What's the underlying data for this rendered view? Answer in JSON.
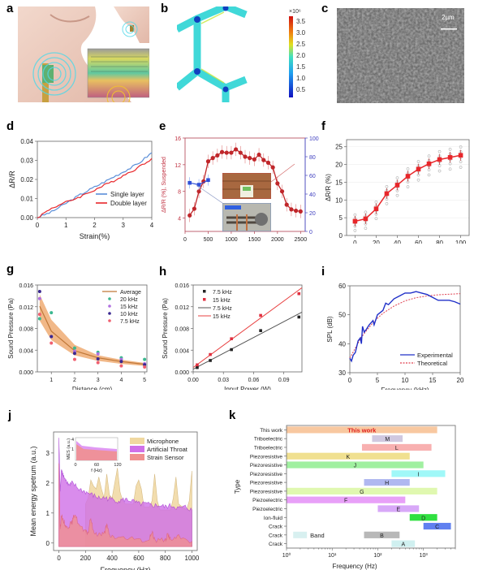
{
  "panels": {
    "a": {
      "letter": "a"
    },
    "b": {
      "letter": "b",
      "colorbar": {
        "exponent_label": "×10⁶",
        "ticks": [
          "3.5",
          "3.0",
          "2.5",
          "2.0",
          "1.5",
          "1.0",
          "0.5"
        ]
      }
    },
    "c": {
      "letter": "c",
      "scale_bar": "2μm"
    },
    "d": {
      "letter": "d"
    },
    "e": {
      "letter": "e"
    },
    "f": {
      "letter": "f"
    },
    "g": {
      "letter": "g"
    },
    "h": {
      "letter": "h"
    },
    "i": {
      "letter": "i"
    },
    "j": {
      "letter": "j"
    },
    "k": {
      "letter": "k"
    }
  },
  "colors": {
    "red": "#e8262a",
    "blue": "#3b5fd6",
    "orange": "#e8a060",
    "purple": "#c060e8",
    "yellow": "#f0d090",
    "pink": "#f08080"
  },
  "chart_data": [
    {
      "id": "d",
      "type": "line",
      "xlabel": "Strain(%)",
      "ylabel": "ΔR/R",
      "xlim": [
        0,
        4
      ],
      "ylim": [
        0,
        0.04
      ],
      "xticks": [
        "0",
        "1",
        "2",
        "3",
        "4"
      ],
      "yticks": [
        "0.00",
        "0.01",
        "0.02",
        "0.03",
        "0.04"
      ],
      "legend": "bottom-right",
      "series": [
        {
          "name": "Single layer",
          "color": "#5a8ed8",
          "x": [
            0,
            0.5,
            1,
            1.5,
            2,
            2.5,
            3,
            3.5,
            4
          ],
          "y": [
            0,
            0.003,
            0.0075,
            0.012,
            0.016,
            0.02,
            0.024,
            0.028,
            0.034
          ]
        },
        {
          "name": "Double layer",
          "color": "#e8262a",
          "x": [
            0,
            0.5,
            1,
            1.5,
            2,
            2.5,
            3,
            3.5,
            4
          ],
          "y": [
            0,
            0.005,
            0.008,
            0.011,
            0.0145,
            0.018,
            0.022,
            0.026,
            0.031
          ]
        }
      ]
    },
    {
      "id": "e",
      "type": "line",
      "xlabel": "Frequency (Hz)",
      "ylabel": "ΔR/R (%), Suspended",
      "xlim": [
        0,
        2600
      ],
      "ylim": [
        2,
        16
      ],
      "y2lim": [
        0,
        100
      ],
      "xticks": [
        "0",
        "500",
        "1000",
        "1500",
        "2000",
        "2500"
      ],
      "yticks": [
        "4",
        "8",
        "12",
        "16"
      ],
      "y2ticks": [
        "0",
        "20",
        "40",
        "60",
        "80",
        "100"
      ],
      "series": [
        {
          "name": "Suspended",
          "color": "#c0262a",
          "x": [
            100,
            200,
            300,
            400,
            500,
            600,
            700,
            800,
            900,
            1000,
            1100,
            1200,
            1300,
            1400,
            1500,
            1600,
            1700,
            1800,
            1900,
            2000,
            2100,
            2200,
            2300,
            2400,
            2500
          ],
          "y": [
            4.4,
            5.4,
            8,
            9.5,
            12.5,
            13,
            13.4,
            13.9,
            13.8,
            13.8,
            14.3,
            13.8,
            13.2,
            13,
            12.8,
            13.5,
            12.7,
            12.3,
            11.6,
            9.2,
            8,
            6,
            5.3,
            5.1,
            5
          ]
        },
        {
          "name": "Substrated",
          "color": "#3050d8",
          "axis": "y2",
          "x": [
            100,
            300,
            500
          ],
          "y": [
            52,
            50,
            55
          ]
        }
      ]
    },
    {
      "id": "f",
      "type": "line",
      "xlabel": "Intensity (%)",
      "ylabel": "ΔR/R (%)",
      "xlim": [
        -8,
        108
      ],
      "ylim": [
        0,
        27
      ],
      "xticks": [
        "0",
        "20",
        "40",
        "60",
        "80",
        "100"
      ],
      "yticks": [
        "0",
        "5",
        "10",
        "15",
        "20",
        "25"
      ],
      "series": [
        {
          "name": "mean",
          "color": "#e8262a",
          "x": [
            0,
            10,
            20,
            30,
            40,
            50,
            60,
            70,
            80,
            90,
            100
          ],
          "y": [
            4,
            4.7,
            7.5,
            11.8,
            14.2,
            16.7,
            18.7,
            20.2,
            21.4,
            22,
            22.6
          ]
        }
      ]
    },
    {
      "id": "g",
      "type": "scatter",
      "xlabel": "Distance (cm)",
      "ylabel": "Sound Pressure (Pa)",
      "xlim": [
        0.4,
        5.1
      ],
      "ylim": [
        0,
        0.016
      ],
      "xticks": [
        "1",
        "2",
        "3",
        "4",
        "5"
      ],
      "yticks": [
        "0.000",
        "0.004",
        "0.008",
        "0.012",
        "0.016"
      ],
      "legend": "top-right",
      "series": [
        {
          "name": "Average",
          "color": "#c07838",
          "x": [
            0.5,
            1,
            2,
            3,
            4,
            5
          ],
          "y": [
            0.0121,
            0.0075,
            0.0039,
            0.0026,
            0.0019,
            0.0014
          ]
        },
        {
          "name": "20 kHz",
          "color": "#3cb890",
          "x": [
            0.5,
            1,
            2,
            3,
            4,
            5
          ],
          "y": [
            0.0098,
            0.0109,
            0.0044,
            0.0036,
            0.0026,
            0.0023
          ]
        },
        {
          "name": "15 kHz",
          "color": "#b070e0",
          "x": [
            0.5,
            1,
            2,
            3,
            4,
            5
          ],
          "y": [
            0.0135,
            0.0065,
            0.0038,
            0.0033,
            0.0023,
            0.0015
          ]
        },
        {
          "name": "10 kHz",
          "color": "#3a2890",
          "x": [
            0.5,
            1,
            2,
            3,
            4,
            5
          ],
          "y": [
            0.0148,
            0.0065,
            0.0034,
            0.0024,
            0.0019,
            0.0013
          ]
        },
        {
          "name": "7.5 kHz",
          "color": "#f06070",
          "x": [
            0.5,
            1,
            2,
            3,
            4,
            5
          ],
          "y": [
            0.0106,
            0.0053,
            0.0023,
            0.0017,
            0.0011,
            0.0009
          ]
        }
      ]
    },
    {
      "id": "h",
      "type": "scatter",
      "xlabel": "Input Power (W)",
      "ylabel": "Sound Pressure (Pa)",
      "xlim": [
        0,
        0.108
      ],
      "ylim": [
        0,
        0.016
      ],
      "xticks": [
        "0.00",
        "0.03",
        "0.06",
        "0.09"
      ],
      "yticks": [
        "0.000",
        "0.004",
        "0.008",
        "0.012",
        "0.016"
      ],
      "legend": "top-left",
      "series": [
        {
          "name": "7.5 kHz",
          "kind": "points",
          "color": "#222222",
          "x": [
            0.004,
            0.017,
            0.038,
            0.067,
            0.105
          ],
          "y": [
            0.0008,
            0.0021,
            0.0041,
            0.0076,
            0.0101
          ]
        },
        {
          "name": "15 kHz",
          "kind": "points",
          "color": "#e03040",
          "x": [
            0.004,
            0.017,
            0.038,
            0.067,
            0.105
          ],
          "y": [
            0.0013,
            0.0032,
            0.0061,
            0.0104,
            0.0144
          ]
        },
        {
          "name": "7.5 kHz",
          "kind": "fit",
          "color": "#555555",
          "x": [
            0,
            0.108
          ],
          "y": [
            0.0005,
            0.011
          ]
        },
        {
          "name": "15 kHz",
          "kind": "fit",
          "color": "#e84040",
          "x": [
            0,
            0.108
          ],
          "y": [
            0.0008,
            0.0155
          ]
        }
      ]
    },
    {
      "id": "i",
      "type": "line",
      "xlabel": "Frequency (kHz)",
      "ylabel": "SPL (dB)",
      "xlim": [
        0,
        20
      ],
      "ylim": [
        30,
        60
      ],
      "xticks": [
        "0",
        "5",
        "10",
        "15",
        "20"
      ],
      "yticks": [
        "30",
        "40",
        "50",
        "60"
      ],
      "legend": "bottom-right",
      "series": [
        {
          "name": "Experimental",
          "color": "#2030c8",
          "x": [
            0,
            0.3,
            0.6,
            1,
            1.5,
            1.9,
            2.1,
            2.3,
            2.6,
            3,
            3.5,
            4.2,
            4.4,
            5,
            6,
            6.5,
            7,
            8,
            9,
            10,
            11,
            12,
            13,
            14,
            15,
            16,
            17,
            18,
            19,
            20
          ],
          "y": [
            35,
            34,
            36,
            37,
            41,
            42,
            40,
            46,
            44,
            45,
            46.5,
            48,
            46.5,
            50,
            51.5,
            54,
            53.5,
            55.5,
            56.5,
            57.5,
            57.5,
            58,
            57.5,
            57,
            56,
            55,
            55,
            55,
            54.5,
            53.7
          ]
        },
        {
          "name": "Theoretical",
          "color": "#e04050",
          "dash": true,
          "x": [
            0,
            1,
            2,
            3,
            4,
            5,
            6,
            8,
            10,
            12,
            14,
            16,
            18,
            20
          ],
          "y": [
            35,
            38.5,
            42,
            44.5,
            46.8,
            48.8,
            50.5,
            53,
            54.8,
            55.9,
            56.5,
            56.9,
            57.1,
            57.3
          ]
        }
      ]
    },
    {
      "id": "j",
      "type": "area",
      "xlabel": "Frequency (Hz)",
      "ylabel": "Mean energy spetrum (a.u.)",
      "xlim": [
        -40,
        1040
      ],
      "ylim": [
        -0.25,
        3.7
      ],
      "xticks": [
        "0",
        "200",
        "400",
        "600",
        "800",
        "1000"
      ],
      "yticks": [
        "0",
        "1",
        "2",
        "3"
      ],
      "legend": "top-right",
      "series": [
        {
          "name": "Microphone",
          "color": "#f0d8a0",
          "x": [
            200,
            220,
            240,
            260,
            280,
            300,
            320,
            340,
            360,
            380,
            400,
            420,
            440,
            460,
            480,
            500,
            560,
            580,
            600,
            620,
            640,
            680,
            700,
            720,
            740,
            760,
            840,
            860,
            880,
            900,
            960,
            980,
            1000
          ],
          "y": [
            1.3,
            1.5,
            2.1,
            1.9,
            1.8,
            2.2,
            1.8,
            1.5,
            2.3,
            1.6,
            1.5,
            2,
            2.5,
            1.7,
            1.4,
            1.3,
            1.3,
            1.9,
            2.1,
            1.8,
            1.2,
            1.2,
            1.4,
            2.3,
            1.4,
            1.1,
            1.1,
            1.5,
            2.2,
            1.3,
            1.1,
            1.4,
            2.4
          ]
        },
        {
          "name": "Artificial Throat",
          "color": "#d070e8",
          "x": [
            0,
            10,
            20,
            30,
            50,
            80,
            100,
            150,
            200,
            250,
            300,
            350,
            400,
            450,
            500,
            550,
            600,
            650,
            700,
            750,
            800,
            850,
            900,
            950,
            1000
          ],
          "y": [
            3.5,
            1.7,
            2.5,
            2.3,
            2.1,
            1.9,
            2,
            1.8,
            1.7,
            1.6,
            1.5,
            1.5,
            1.45,
            1.4,
            1.45,
            1.4,
            1.3,
            1.3,
            1.25,
            1.25,
            1.2,
            1.25,
            1.15,
            1.2,
            1.1
          ]
        },
        {
          "name": "Strain Sensor",
          "color": "#f09090",
          "x": [
            0,
            10,
            20,
            40,
            60,
            80,
            100,
            120,
            150,
            200,
            220,
            240,
            260,
            300,
            340,
            360,
            380,
            420,
            500,
            600,
            680,
            700,
            720,
            800,
            820,
            840,
            900,
            1000
          ],
          "y": [
            2.6,
            0.5,
            0.9,
            0.7,
            0.5,
            0.6,
            0.7,
            1,
            0.6,
            0.35,
            0.35,
            0.85,
            0.35,
            0.3,
            0.3,
            0.6,
            0.25,
            0.2,
            0.15,
            0.1,
            0.1,
            0.4,
            0.1,
            0.1,
            0.3,
            0.1,
            0.2,
            0.05
          ]
        }
      ],
      "inset": {
        "xlabel": "f (Hz)",
        "ylabel": "MES (a.u.)",
        "xticks": [
          "0",
          "60",
          "120"
        ],
        "yticks": [
          "1",
          "4"
        ]
      }
    },
    {
      "id": "k",
      "type": "bar",
      "orientation": "horizontal",
      "xscale": "log",
      "xlabel": "Frequency (Hz)",
      "ylabel": "Type",
      "xlim": [
        1,
        5000
      ],
      "xticks": [
        "10⁰",
        "10¹",
        "10²",
        "10³"
      ],
      "band_label": "Band",
      "bars": [
        {
          "category": "This work",
          "label": "This work",
          "from": 1,
          "to": 2000,
          "color": "#f8c8a0",
          "label_color": "#e02020"
        },
        {
          "category": "Triboelectric",
          "label": "M",
          "from": 75,
          "to": 350,
          "color": "#d0c8e0"
        },
        {
          "category": "Triboelectric",
          "label": "L",
          "from": 45,
          "to": 1500,
          "color": "#f8b0b0"
        },
        {
          "category": "Piezoresistive",
          "label": "K",
          "from": 1,
          "to": 500,
          "color": "#f0e090"
        },
        {
          "category": "Piezoresistive",
          "label": "J",
          "from": 1,
          "to": 1000,
          "color": "#a0f0a0"
        },
        {
          "category": "Piezoresistive",
          "label": "I",
          "from": 200,
          "to": 3000,
          "color": "#a0f8f8"
        },
        {
          "category": "Piezoresistive",
          "label": "H",
          "from": 50,
          "to": 500,
          "color": "#b0b8f0"
        },
        {
          "category": "Piezoresistive",
          "label": "G",
          "from": 1,
          "to": 2000,
          "color": "#e0f8b0"
        },
        {
          "category": "Piezoelectric",
          "label": "F",
          "from": 1,
          "to": 400,
          "color": "#e8a0f8"
        },
        {
          "category": "Piezoelectric",
          "label": "E",
          "from": 100,
          "to": 800,
          "color": "#d8a8f8"
        },
        {
          "category": "Ion-fluid",
          "label": "D",
          "from": 500,
          "to": 2000,
          "color": "#30e040"
        },
        {
          "category": "Crack",
          "label": "C",
          "from": 1000,
          "to": 4000,
          "color": "#6080f0"
        },
        {
          "category": "Crack",
          "label": "B",
          "from": 50,
          "to": 300,
          "color": "#b8b8b8"
        },
        {
          "category": "Crack",
          "label": "A",
          "from": 200,
          "to": 650,
          "color": "#d0f0f0"
        }
      ]
    }
  ]
}
